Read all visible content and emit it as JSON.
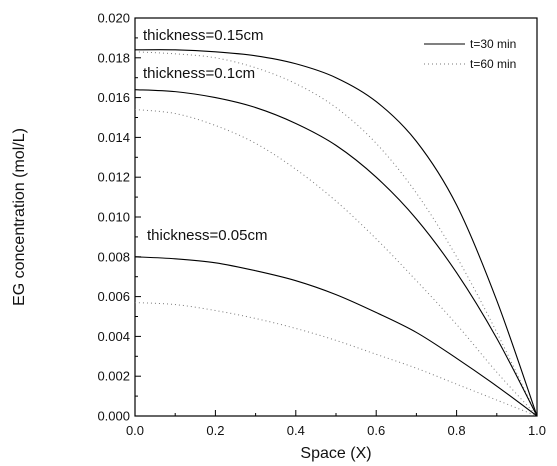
{
  "chart_data": {
    "type": "line",
    "xlabel": "Space (X)",
    "ylabel": "EG concentration (mol/L)",
    "xlim": [
      0.0,
      1.0
    ],
    "ylim": [
      0.0,
      0.02
    ],
    "x_ticks": [
      "0.0",
      "0.2",
      "0.4",
      "0.6",
      "0.8",
      "1.0"
    ],
    "y_ticks": [
      "0.000",
      "0.002",
      "0.004",
      "0.006",
      "0.008",
      "0.010",
      "0.012",
      "0.014",
      "0.016",
      "0.018",
      "0.020"
    ],
    "grid": false,
    "legend": {
      "position": "top-right",
      "entries": [
        {
          "label": "t=30 min",
          "style": "solid"
        },
        {
          "label": "t=60 min",
          "style": "dotted"
        }
      ]
    },
    "annotations": [
      "thickness=0.15cm",
      "thickness=0.1cm",
      "thickness=0.05cm"
    ],
    "x": [
      0.0,
      0.1,
      0.2,
      0.3,
      0.4,
      0.5,
      0.6,
      0.7,
      0.8,
      0.9,
      1.0
    ],
    "series": [
      {
        "group": "thickness=0.15cm",
        "time": "t=30 min",
        "style": "solid",
        "values": [
          0.0184,
          0.0184,
          0.0183,
          0.0181,
          0.0177,
          0.017,
          0.0158,
          0.0138,
          0.0106,
          0.0058,
          0.0
        ]
      },
      {
        "group": "thickness=0.15cm",
        "time": "t=60 min",
        "style": "dotted",
        "values": [
          0.0183,
          0.0182,
          0.018,
          0.0175,
          0.0167,
          0.0155,
          0.0137,
          0.0112,
          0.008,
          0.0042,
          0.0
        ]
      },
      {
        "group": "thickness=0.1cm",
        "time": "t=30 min",
        "style": "solid",
        "values": [
          0.0164,
          0.0163,
          0.016,
          0.0155,
          0.0147,
          0.0136,
          0.012,
          0.0099,
          0.0072,
          0.0039,
          0.0
        ]
      },
      {
        "group": "thickness=0.1cm",
        "time": "t=60 min",
        "style": "dotted",
        "values": [
          0.0154,
          0.0152,
          0.0146,
          0.0137,
          0.0124,
          0.0108,
          0.0089,
          0.0068,
          0.0046,
          0.0022,
          0.0
        ]
      },
      {
        "group": "thickness=0.05cm",
        "time": "t=30 min",
        "style": "solid",
        "values": [
          0.008,
          0.0079,
          0.0077,
          0.0073,
          0.0068,
          0.0061,
          0.0052,
          0.0042,
          0.0029,
          0.0015,
          0.0
        ]
      },
      {
        "group": "thickness=0.05cm",
        "time": "t=60 min",
        "style": "dotted",
        "values": [
          0.0057,
          0.0056,
          0.0053,
          0.0049,
          0.0044,
          0.0038,
          0.0031,
          0.0024,
          0.0016,
          0.0008,
          0.0
        ]
      }
    ]
  }
}
